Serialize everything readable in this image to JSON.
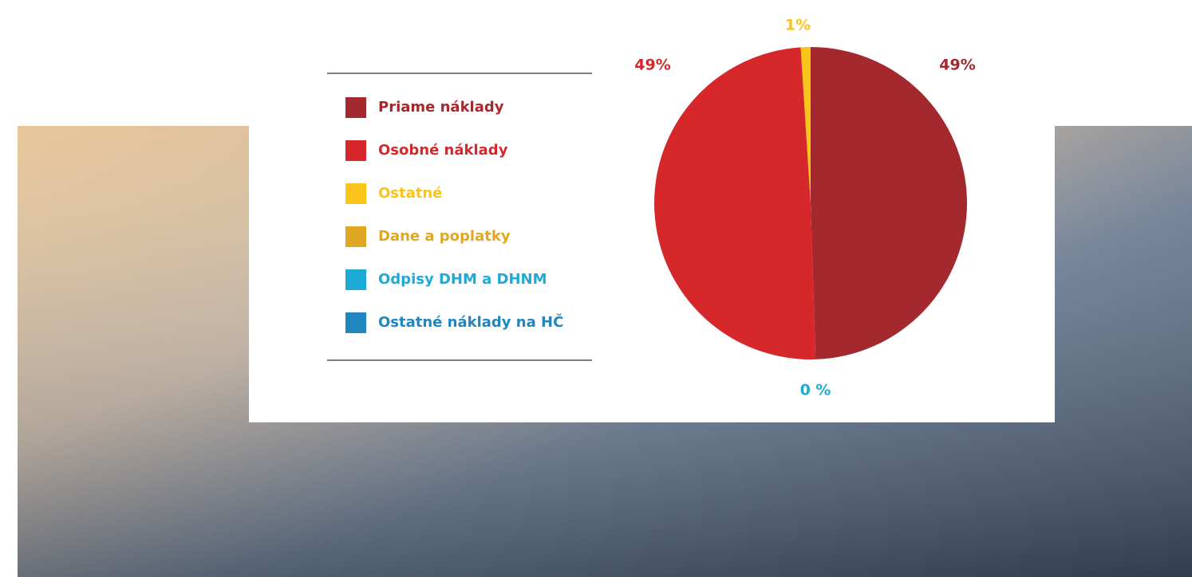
{
  "chart_data": {
    "type": "pie",
    "categories": [
      "Priame náklady",
      "Osobné náklady",
      "Ostatné",
      "Dane a poplatky",
      "Odpisy DHM a DHNM",
      "Ostatné náklady na HČ"
    ],
    "values": [
      49,
      49,
      1,
      0,
      0,
      0
    ],
    "value_labels": [
      "49%",
      "49%",
      "1%",
      null,
      "0 %",
      null
    ],
    "colors": [
      "#a3292f",
      "#d6282b",
      "#fbc41b",
      "#e0a822",
      "#1ea9d7",
      "#1f86bf"
    ]
  }
}
